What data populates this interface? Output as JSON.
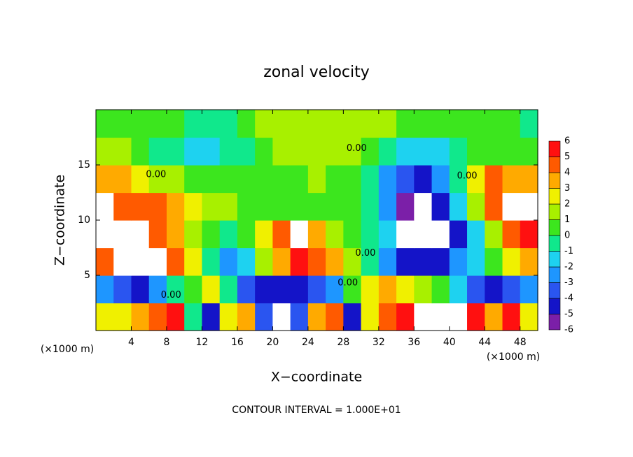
{
  "chart_data": {
    "type": "heatmap",
    "title": "zonal velocity",
    "x_label": "X−coordinate",
    "y_label": "Z−coordinate",
    "x_unit": "(×1000 m)",
    "y_unit": "(×1000 m)",
    "footer": "CONTOUR INTERVAL = 1.000E+01",
    "xlim": [
      0,
      50
    ],
    "ylim": [
      0,
      20
    ],
    "xticks": [
      4,
      8,
      12,
      16,
      20,
      24,
      28,
      32,
      36,
      40,
      44,
      48
    ],
    "yticks": [
      5,
      10,
      15
    ],
    "colorbar_ticks": [
      -6,
      -5,
      -4,
      -3,
      -2,
      -1,
      0,
      1,
      2,
      3,
      4,
      5,
      6
    ],
    "colorbar_colors": [
      "#7b1fa8",
      "#1414c8",
      "#2a55f0",
      "#1e96ff",
      "#1ed2f0",
      "#10e88c",
      "#3ce61e",
      "#a8f000",
      "#f0f000",
      "#ffaa00",
      "#ff5a00",
      "#ff1010"
    ],
    "contour_labels": [
      {
        "text": "0.00",
        "x": 6.8,
        "y": 14.1
      },
      {
        "text": "0.00",
        "x": 8.5,
        "y": 3.2
      },
      {
        "text": "0.00",
        "x": 29.5,
        "y": 16.5
      },
      {
        "text": "0.00",
        "x": 28.5,
        "y": 4.3
      },
      {
        "text": "0.00",
        "x": 30.5,
        "y": 7
      },
      {
        "text": "0.00",
        "x": 42,
        "y": 14
      }
    ],
    "z": [
      [
        2,
        2.5,
        3,
        4,
        5,
        -1,
        -5,
        2,
        3,
        -4,
        8,
        -4,
        3,
        4,
        -5,
        2,
        4,
        5,
        8,
        8,
        8,
        5,
        3,
        5,
        2
      ],
      [
        -3,
        -4,
        -4.5,
        -3,
        -1,
        0.5,
        2,
        -1,
        -4,
        -5,
        -5,
        -4.5,
        -3.5,
        -3,
        0,
        2,
        3,
        2,
        1,
        0,
        -2,
        -4,
        -5,
        -4,
        -3
      ],
      [
        4.5,
        8,
        8,
        8,
        4,
        2,
        -1,
        -3,
        -2,
        1,
        3,
        5,
        4,
        3,
        1,
        -1,
        -3,
        -4.5,
        -5,
        -4.5,
        -3,
        -2,
        0,
        2,
        3
      ],
      [
        8,
        8,
        8,
        4.5,
        3,
        1,
        0.5,
        -1,
        0.5,
        2,
        4.5,
        8,
        3.5,
        1,
        0.5,
        -1,
        -2,
        8,
        8,
        8,
        -5,
        -2,
        1,
        4,
        5
      ],
      [
        8,
        4.5,
        4.5,
        4,
        3.5,
        2,
        1.5,
        1,
        0.8,
        0.5,
        0.8,
        0.5,
        0.3,
        0.3,
        0.2,
        -1,
        -3,
        -5.5,
        8,
        -5,
        -2,
        1,
        4,
        8,
        8
      ],
      [
        3.5,
        3,
        2.5,
        1.5,
        1,
        0.5,
        0.5,
        0.3,
        0.2,
        0.5,
        0.8,
        0.8,
        1,
        0.5,
        0.3,
        -0.5,
        -2.5,
        -4,
        -4.5,
        -3,
        -1,
        2,
        4,
        3.5,
        3
      ],
      [
        1,
        1,
        0.5,
        -0.5,
        -1,
        -1.5,
        -1.8,
        -1,
        -0.5,
        0.5,
        1,
        1.2,
        1.2,
        1.5,
        1,
        0.5,
        -0.5,
        -1.5,
        -2,
        -1.5,
        -0.5,
        0.5,
        0.8,
        0.5,
        0.2
      ],
      [
        0.5,
        0.5,
        0.3,
        0.2,
        0.3,
        -0.5,
        -0.5,
        -0.3,
        0.5,
        1,
        1,
        1.5,
        1.5,
        1.8,
        1.5,
        1.2,
        1,
        0.8,
        0.5,
        0.5,
        0.3,
        0.3,
        0.2,
        0.2,
        -0.3
      ]
    ]
  }
}
